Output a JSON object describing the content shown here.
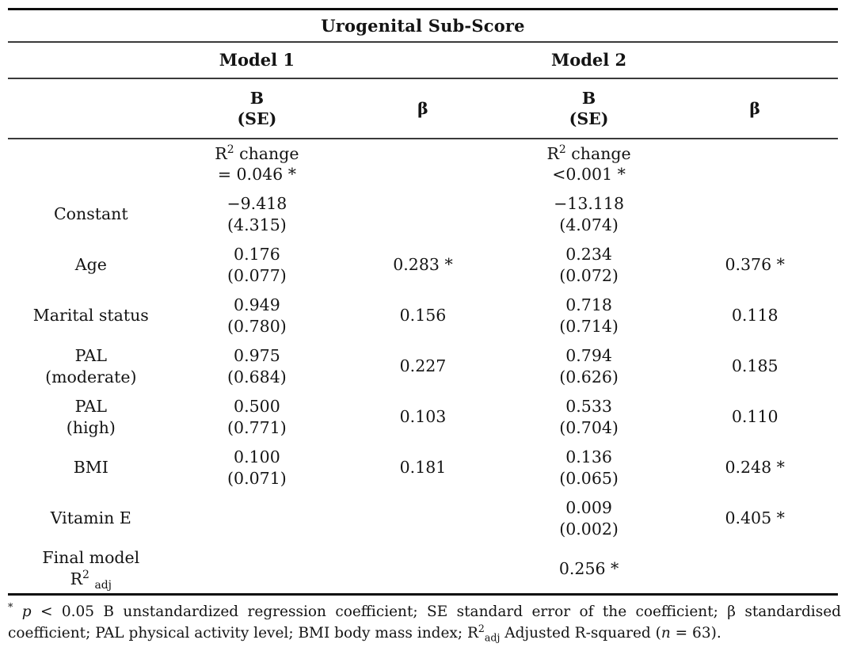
{
  "table": {
    "title": "Urogenital Sub-Score",
    "model_headers": [
      "Model 1",
      "Model 2"
    ],
    "b_se_label": "B\n(SE)",
    "beta_label": "β",
    "rows": [
      {
        "label": "",
        "m1_b": "R^{2} change\n= 0.046 *",
        "m1_beta": "",
        "m2_b": "R^{2} change\n<0.001 *",
        "m2_beta": ""
      },
      {
        "label": "Constant",
        "m1_b": "−9.418\n(4.315)",
        "m1_beta": "",
        "m2_b": "−13.118\n(4.074)",
        "m2_beta": ""
      },
      {
        "label": "Age",
        "m1_b": "0.176\n(0.077)",
        "m1_beta": "0.283 *",
        "m2_b": "0.234\n(0.072)",
        "m2_beta": "0.376 *"
      },
      {
        "label": "Marital status",
        "m1_b": "0.949\n(0.780)",
        "m1_beta": "0.156",
        "m2_b": "0.718\n(0.714)",
        "m2_beta": "0.118"
      },
      {
        "label": "PAL\n(moderate)",
        "m1_b": "0.975\n(0.684)",
        "m1_beta": "0.227",
        "m2_b": "0.794\n(0.626)",
        "m2_beta": "0.185"
      },
      {
        "label": "PAL\n(high)",
        "m1_b": "0.500\n(0.771)",
        "m1_beta": "0.103",
        "m2_b": "0.533\n(0.704)",
        "m2_beta": "0.110"
      },
      {
        "label": "BMI",
        "m1_b": "0.100\n(0.071)",
        "m1_beta": "0.181",
        "m2_b": "0.136\n(0.065)",
        "m2_beta": "0.248 *"
      },
      {
        "label": "Vitamin E",
        "m1_b": "",
        "m1_beta": "",
        "m2_b": "0.009\n(0.002)",
        "m2_beta": "0.405 *"
      },
      {
        "label": "Final model\nR^{2} _{adj}",
        "m1_b": "",
        "m1_beta": "",
        "m2_b": "0.256 *",
        "m2_beta": ""
      }
    ],
    "footnote": "^{*} //p// < 0.05 B unstandardized regression coefficient; SE standard error of the coefficient; β standardised coefficient; PAL physical activity level; BMI body mass index; R^{2}_{adj} Adjusted R-squared (//n// = 63)."
  }
}
